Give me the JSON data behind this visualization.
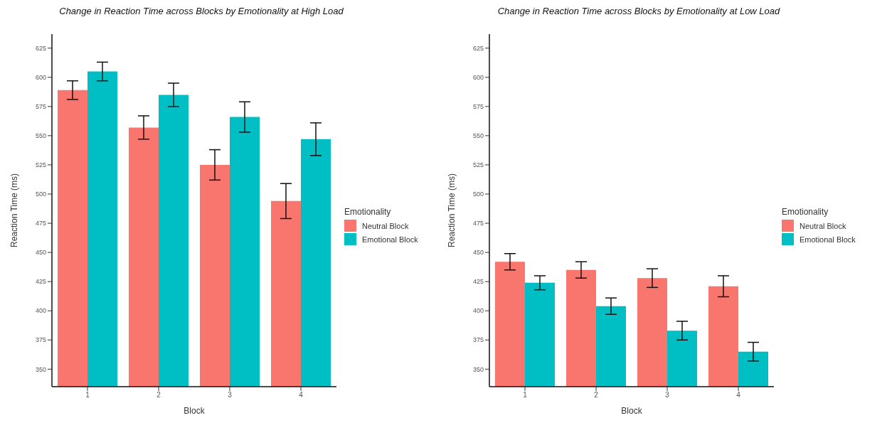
{
  "chart_data": [
    {
      "type": "bar",
      "title": "Change in Reaction Time across Blocks by Emotionality at High Load",
      "xlabel": "Block",
      "ylabel": "Reaction Time (ms)",
      "legend_title": "Emotionality",
      "categories": [
        "1",
        "2",
        "3",
        "4"
      ],
      "series": [
        {
          "name": "Neutral Block",
          "color": "#f8766d",
          "values": [
            589,
            557,
            525,
            494
          ],
          "errors": [
            8,
            10,
            13,
            15
          ]
        },
        {
          "name": "Emotional Block",
          "color": "#00bfc4",
          "values": [
            605,
            585,
            566,
            547
          ],
          "errors": [
            8,
            10,
            13,
            14
          ]
        }
      ],
      "ylim": [
        335,
        637
      ],
      "yticks": [
        350,
        375,
        400,
        425,
        450,
        475,
        500,
        525,
        550,
        575,
        600,
        625
      ],
      "grid": false,
      "legend": "right"
    },
    {
      "type": "bar",
      "title": "Change in Reaction Time across Blocks by Emotionality at Low Load",
      "xlabel": "Block",
      "ylabel": "Reaction Time (ms)",
      "legend_title": "Emotionality",
      "categories": [
        "1",
        "2",
        "3",
        "4"
      ],
      "series": [
        {
          "name": "Neutral Block",
          "color": "#f8766d",
          "values": [
            442,
            435,
            428,
            421
          ],
          "errors": [
            7,
            7,
            8,
            9
          ]
        },
        {
          "name": "Emotional Block",
          "color": "#00bfc4",
          "values": [
            424,
            404,
            383,
            365
          ],
          "errors": [
            6,
            7,
            8,
            8
          ]
        }
      ],
      "ylim": [
        335,
        637
      ],
      "yticks": [
        350,
        375,
        400,
        425,
        450,
        475,
        500,
        525,
        550,
        575,
        600,
        625
      ],
      "grid": false,
      "legend": "right"
    }
  ]
}
